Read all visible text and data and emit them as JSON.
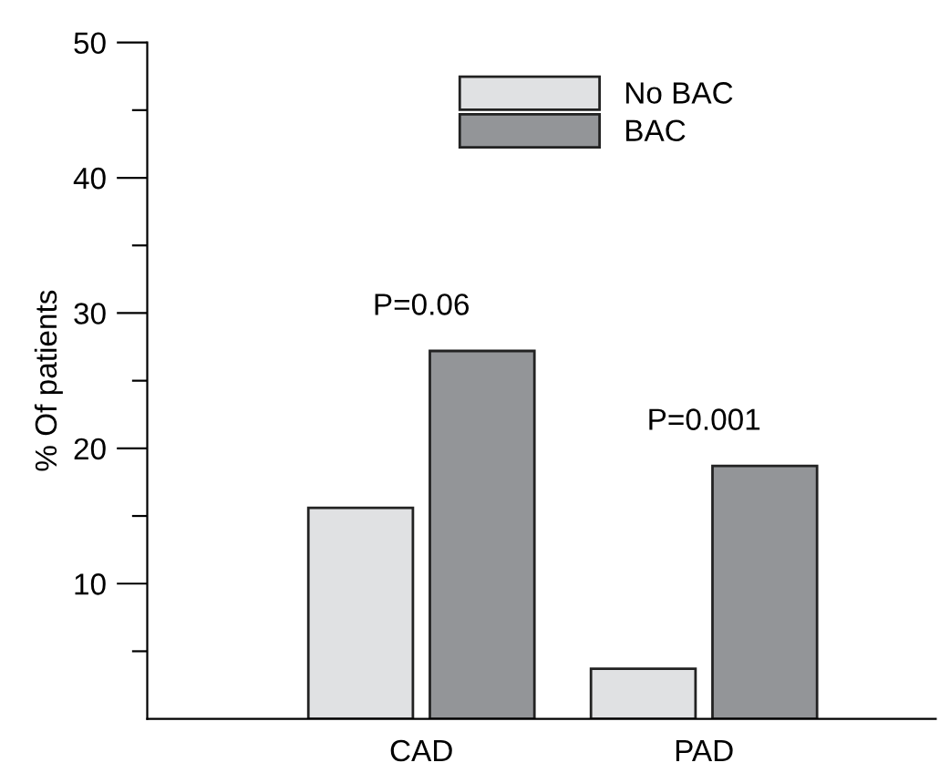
{
  "chart_data": {
    "type": "bar",
    "ylabel": "% Of patients",
    "categories": [
      "CAD",
      "PAD"
    ],
    "series": [
      {
        "name": "No BAC",
        "color": "#e0e1e3",
        "values": [
          15.6,
          3.7
        ]
      },
      {
        "name": "BAC",
        "color": "#939598",
        "values": [
          27.2,
          18.7
        ]
      }
    ],
    "ylim": [
      0,
      50
    ],
    "yticks": [
      {
        "value": 5,
        "label": null
      },
      10,
      {
        "value": 15,
        "label": null
      },
      20,
      {
        "value": 25,
        "label": null
      },
      30,
      {
        "value": 35,
        "label": null
      },
      40,
      {
        "value": 45,
        "label": null
      },
      50
    ],
    "annotations": [
      "P=0.06",
      "P=0.001"
    ],
    "legend": "top",
    "grid": false
  }
}
